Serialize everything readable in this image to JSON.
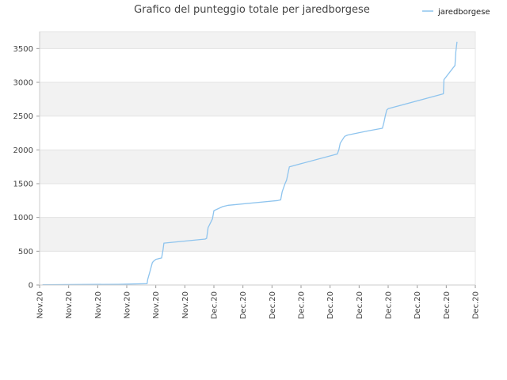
{
  "chart_data": {
    "type": "line",
    "title": "Grafico del punteggio totale per jaredborgese",
    "xlabel": "",
    "ylabel": "",
    "legend_position": "top-right",
    "grid": true,
    "banded_background": true,
    "ylim": [
      0,
      3750
    ],
    "yticks": [
      0,
      500,
      1000,
      1500,
      2000,
      2500,
      3000,
      3500
    ],
    "xticks": [
      "Nov.20",
      "Nov.20",
      "Nov.20",
      "Nov.20",
      "Nov.20",
      "Nov.20",
      "Dec.20",
      "Dec.20",
      "Dec.20",
      "Dec.20",
      "Dec.20",
      "Dec.20",
      "Dec.20",
      "Dec.20",
      "Dec.20",
      "Dec.20"
    ],
    "xlim": [
      0,
      15
    ],
    "series": [
      {
        "name": "jaredborgese",
        "color": "#8ec4ee",
        "x": [
          0.1,
          2.7,
          3.7,
          3.72,
          3.8,
          3.88,
          3.92,
          4.0,
          4.2,
          4.25,
          4.28,
          5.7,
          5.75,
          5.8,
          5.95,
          6.0,
          6.3,
          6.5,
          8.2,
          8.3,
          8.35,
          8.45,
          8.5,
          8.55,
          8.6,
          10.25,
          10.3,
          10.35,
          10.5,
          10.6,
          11.3,
          11.8,
          11.85,
          11.9,
          11.95,
          12.0,
          13.9,
          13.92,
          14.3,
          14.33,
          14.37
        ],
        "y": [
          5,
          10,
          20,
          80,
          200,
          330,
          350,
          380,
          400,
          520,
          620,
          680,
          690,
          850,
          980,
          1100,
          1160,
          1180,
          1250,
          1260,
          1380,
          1500,
          1550,
          1650,
          1750,
          1940,
          2000,
          2100,
          2200,
          2220,
          2280,
          2320,
          2400,
          2500,
          2590,
          2610,
          2830,
          3040,
          3250,
          3450,
          3600
        ]
      }
    ]
  }
}
